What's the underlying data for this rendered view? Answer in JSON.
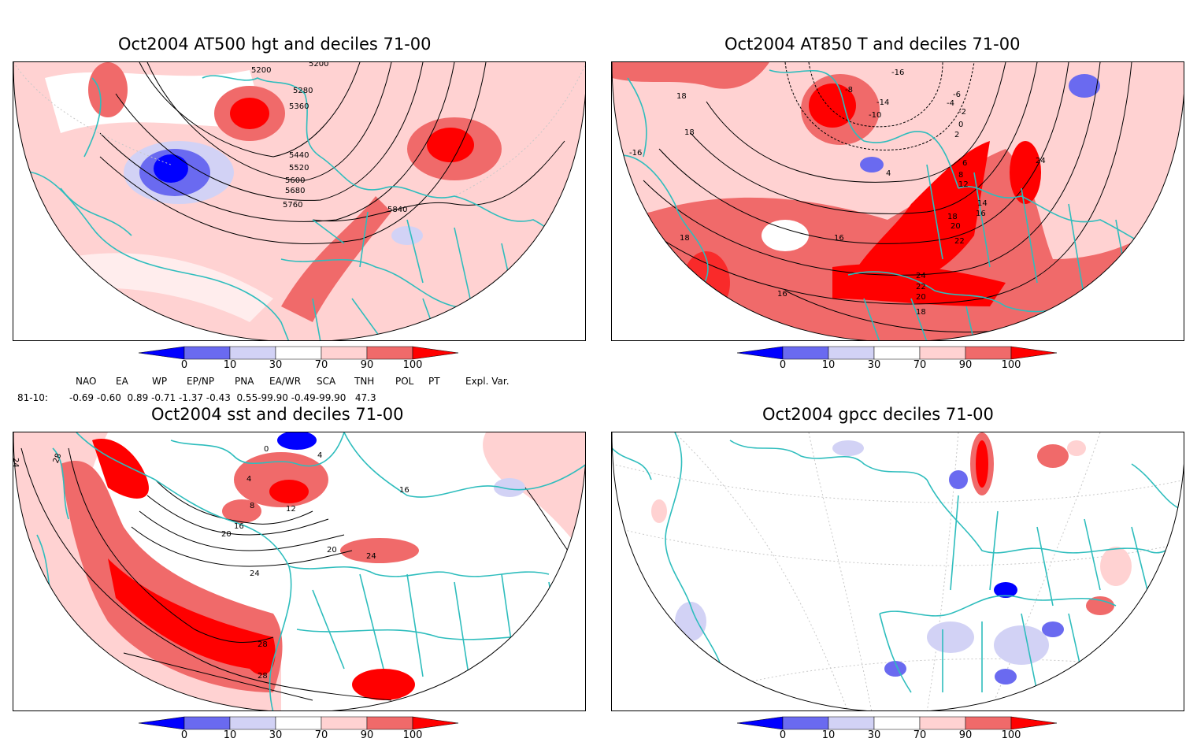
{
  "panels": [
    {
      "title": "Oct2004 AT500 hgt and deciles 71-00",
      "contour_labels": [
        "5200",
        "5280",
        "5360",
        "5440",
        "5520",
        "5600",
        "5680",
        "5760",
        "5840",
        "5200"
      ]
    },
    {
      "title": "Oct2004 AT850 T and deciles 71-00",
      "contour_labels": [
        "-16",
        "-8",
        "-6",
        "-4",
        "-2",
        "0",
        "2",
        "4",
        "6",
        "8",
        "12",
        "14",
        "16",
        "18",
        "20",
        "22",
        "24",
        "18",
        "18",
        "16",
        "18",
        "16",
        "24",
        "22",
        "20",
        "18",
        "-16",
        "-14",
        "-10"
      ]
    },
    {
      "title": "Oct2004 sst and deciles 71-00",
      "contour_labels": [
        "24",
        "28",
        "4",
        "8",
        "12",
        "16",
        "20",
        "24",
        "28",
        "28",
        "0",
        "4",
        "20",
        "24",
        "16"
      ]
    },
    {
      "title": "Oct2004 gpcc deciles 71-00",
      "contour_labels": []
    }
  ],
  "colorbar": {
    "labels": [
      "0",
      "10",
      "30",
      "70",
      "90",
      "100"
    ],
    "colors": [
      "#0000ff",
      "#6a6af0",
      "#d2d2f5",
      "#ffffff",
      "#ffd2d2",
      "#f06a6a",
      "#ff0000"
    ]
  },
  "indices": {
    "names": [
      "NAO",
      "EA",
      "WP",
      "EP/NP",
      "PNA",
      "EA/WR",
      "SCA",
      "TNH",
      "POL",
      "PT",
      "Expl. Var."
    ],
    "period": "81-10:",
    "values_text": "-0.69 -0.60  0.89 -0.71 -1.37 -0.43  0.55-99.90 -0.49-99.90   47.3"
  }
}
